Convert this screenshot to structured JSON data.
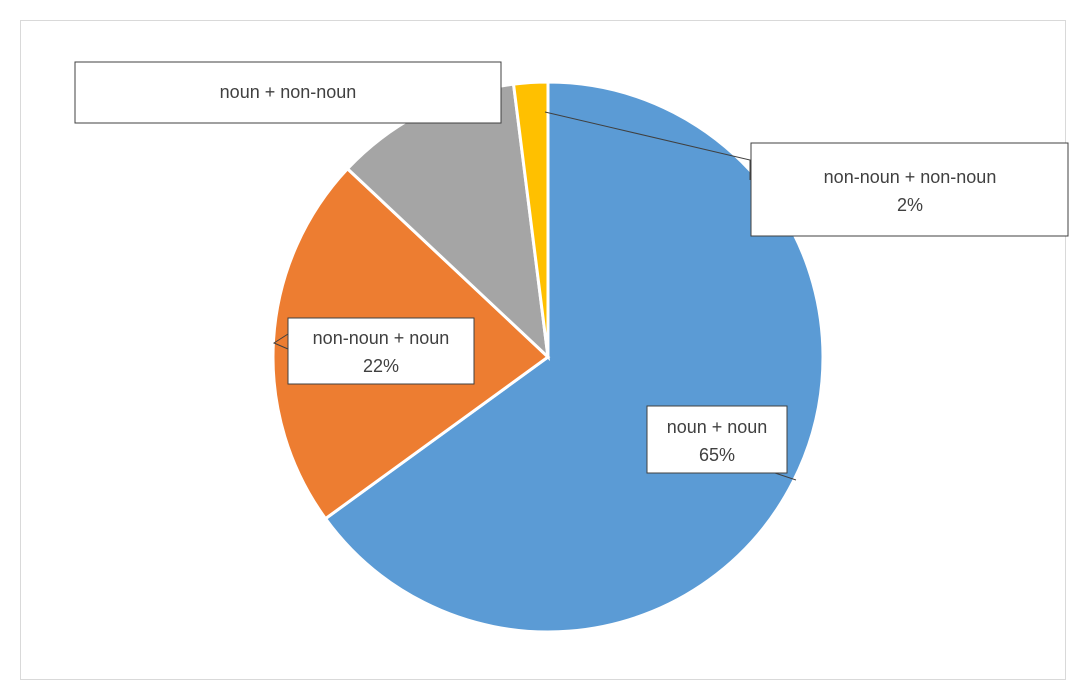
{
  "chart_data": {
    "type": "pie",
    "title": "",
    "legend": "none",
    "start_angle_deg": 0,
    "direction": "clockwise",
    "slices": [
      {
        "label": "noun + noun",
        "value": 65,
        "value_label": "65%",
        "color": "#5B9BD5"
      },
      {
        "label": "non-noun + noun",
        "value": 22,
        "value_label": "22%",
        "color": "#ED7D31"
      },
      {
        "label": "noun + non-noun",
        "value": 11,
        "value_label": "",
        "color": "#A5A5A5"
      },
      {
        "label": "non-noun + non-noun",
        "value": 2,
        "value_label": "2%",
        "color": "#FFC000"
      }
    ]
  }
}
